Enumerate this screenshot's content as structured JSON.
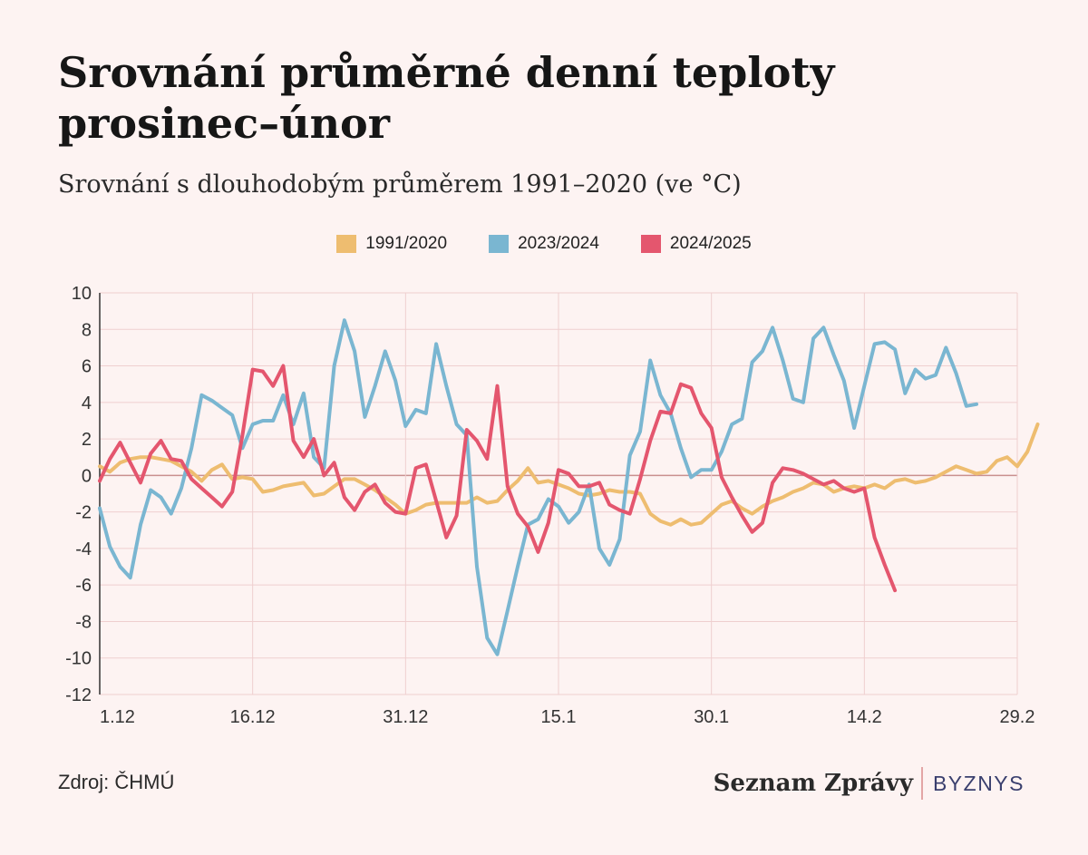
{
  "title": "Srovnání průměrné denní teploty prosinec–únor",
  "subtitle": "Srovnání s dlouhodobým průměrem 1991–2020 (ve °C)",
  "source": "Zdroj: ČHMÚ",
  "brand": {
    "main": "Seznam Zprávy",
    "sub": "BYZNYS"
  },
  "colors": {
    "grid": "#efcfcf",
    "zero_line": "#c98f8f",
    "axis": "#333333"
  },
  "chart_data": {
    "type": "line",
    "x_ticks": [
      "1.12",
      "16.12",
      "31.12",
      "15.1",
      "30.1",
      "14.2",
      "29.2"
    ],
    "x_tick_index": [
      0,
      15,
      30,
      45,
      60,
      75,
      90
    ],
    "ylim": [
      -12,
      10
    ],
    "y_ticks": [
      10,
      8,
      6,
      4,
      2,
      0,
      -2,
      -4,
      -6,
      -8,
      -10,
      -12
    ],
    "grid": true,
    "legend": "top",
    "series": [
      {
        "name": "1991/2020",
        "color": "#eebd70",
        "values": [
          0.5,
          0.2,
          0.7,
          0.9,
          1.0,
          1.0,
          0.9,
          0.8,
          0.5,
          0.2,
          -0.3,
          0.3,
          0.6,
          -0.2,
          -0.1,
          -0.2,
          -0.9,
          -0.8,
          -0.6,
          -0.5,
          -0.4,
          -1.1,
          -1.0,
          -0.6,
          -0.2,
          -0.2,
          -0.5,
          -0.8,
          -1.2,
          -1.6,
          -2.1,
          -1.9,
          -1.6,
          -1.5,
          -1.5,
          -1.5,
          -1.5,
          -1.2,
          -1.5,
          -1.4,
          -0.8,
          -0.3,
          0.4,
          -0.4,
          -0.3,
          -0.5,
          -0.7,
          -1.0,
          -1.1,
          -1.0,
          -0.8,
          -0.9,
          -0.9,
          -1.0,
          -2.1,
          -2.5,
          -2.7,
          -2.4,
          -2.7,
          -2.6,
          -2.1,
          -1.6,
          -1.4,
          -1.8,
          -2.1,
          -1.7,
          -1.4,
          -1.2,
          -0.9,
          -0.7,
          -0.4,
          -0.5,
          -0.9,
          -0.7,
          -0.6,
          -0.7,
          -0.5,
          -0.7,
          -0.3,
          -0.2,
          -0.4,
          -0.3,
          -0.1,
          0.2,
          0.5,
          0.3,
          0.1,
          0.2,
          0.8,
          1.0,
          0.5,
          1.3,
          2.8
        ]
      },
      {
        "name": "2023/2024",
        "color": "#7ab6d1",
        "values": [
          -1.8,
          -3.9,
          -5.0,
          -5.6,
          -2.7,
          -0.8,
          -1.2,
          -2.1,
          -0.7,
          1.5,
          4.4,
          4.1,
          3.7,
          3.3,
          1.5,
          2.8,
          3.0,
          3.0,
          4.4,
          2.8,
          4.5,
          1.0,
          0.4,
          6.0,
          8.5,
          6.8,
          3.2,
          4.9,
          6.8,
          5.2,
          2.7,
          3.6,
          3.4,
          7.2,
          4.9,
          2.8,
          2.2,
          -5.0,
          -8.9,
          -9.8,
          -7.4,
          -5.0,
          -2.7,
          -2.4,
          -1.3,
          -1.7,
          -2.6,
          -2.0,
          -0.5,
          -4.0,
          -4.9,
          -3.5,
          1.1,
          2.4,
          6.3,
          4.4,
          3.4,
          1.5,
          -0.1,
          0.3,
          0.3,
          1.3,
          2.8,
          3.1,
          6.2,
          6.8,
          8.1,
          6.3,
          4.2,
          4.0,
          7.5,
          8.1,
          6.6,
          5.2,
          2.6,
          4.9,
          7.2,
          7.3,
          6.9,
          4.5,
          5.8,
          5.3,
          5.5,
          7.0,
          5.6,
          3.8,
          3.9
        ]
      },
      {
        "name": "2024/2025",
        "color": "#e4566e",
        "values": [
          -0.3,
          0.9,
          1.8,
          0.7,
          -0.4,
          1.2,
          1.9,
          0.9,
          0.8,
          -0.2,
          -0.7,
          -1.2,
          -1.7,
          -0.9,
          2.2,
          5.8,
          5.7,
          4.9,
          6.0,
          1.9,
          1.0,
          2.0,
          0.0,
          0.7,
          -1.2,
          -1.9,
          -0.9,
          -0.5,
          -1.5,
          -2.0,
          -2.1,
          0.4,
          0.6,
          -1.4,
          -3.4,
          -2.2,
          2.5,
          1.9,
          0.9,
          4.9,
          -0.6,
          -2.1,
          -2.8,
          -4.2,
          -2.6,
          0.3,
          0.1,
          -0.6,
          -0.6,
          -0.4,
          -1.6,
          -1.9,
          -2.1,
          -0.2,
          1.9,
          3.5,
          3.4,
          5.0,
          4.8,
          3.4,
          2.6,
          -0.1,
          -1.2,
          -2.2,
          -3.1,
          -2.6,
          -0.4,
          0.4,
          0.3,
          0.1,
          -0.2,
          -0.5,
          -0.3,
          -0.7,
          -0.9,
          -0.7,
          -3.4,
          -4.9,
          -6.3
        ]
      }
    ]
  }
}
